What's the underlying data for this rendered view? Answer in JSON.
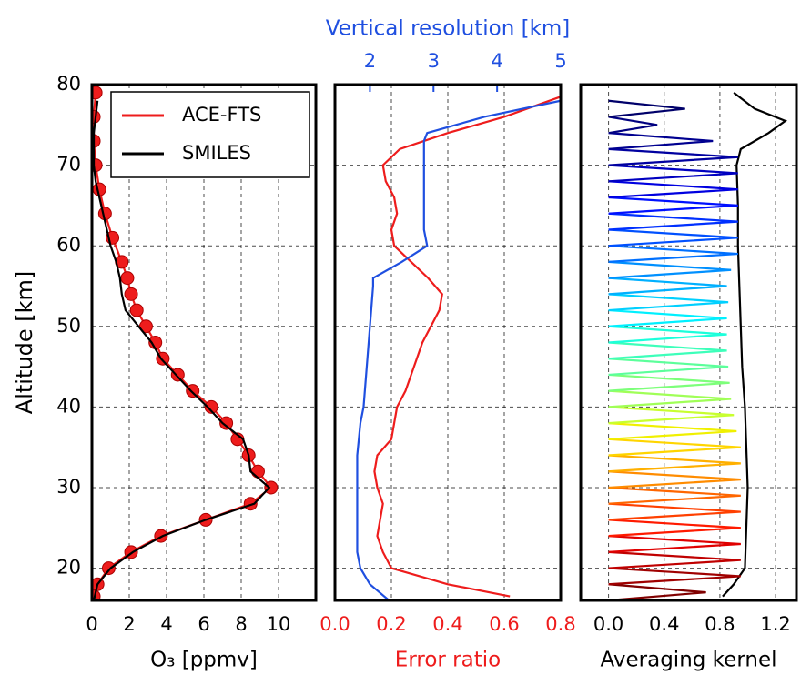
{
  "chart_data": [
    {
      "type": "line",
      "ylabel": "Altitude [km]",
      "xlabel": "O₃ [ppmv]",
      "xlim": [
        0,
        12
      ],
      "xticks": [
        0,
        2,
        4,
        6,
        8,
        10
      ],
      "ylim": [
        16,
        80
      ],
      "yticks": [
        20,
        30,
        40,
        50,
        60,
        70,
        80
      ],
      "ytick_labels": true,
      "grid": true,
      "legend": "upper right",
      "series": [
        {
          "name": "ACE-FTS",
          "color": "#ee1c1c",
          "marker": "o",
          "altitudes": [
            79,
            76,
            73,
            70,
            67,
            64,
            61,
            58,
            56,
            54,
            52,
            50,
            48,
            46,
            44,
            42,
            40,
            38,
            36,
            34,
            32,
            30,
            28,
            26,
            24,
            22,
            20,
            18,
            16.5
          ],
          "values": [
            0.2,
            0.1,
            0.1,
            0.2,
            0.4,
            0.7,
            1.1,
            1.6,
            1.9,
            2.1,
            2.4,
            2.9,
            3.4,
            3.8,
            4.6,
            5.4,
            6.4,
            7.2,
            7.8,
            8.4,
            8.9,
            9.6,
            8.5,
            6.1,
            3.7,
            2.1,
            0.9,
            0.3,
            0.1
          ]
        },
        {
          "name": "SMILES",
          "color": "#000000",
          "altitudes": [
            16,
            18,
            20,
            22,
            24,
            26,
            28,
            30,
            32,
            34,
            36,
            38,
            40,
            42,
            44,
            46,
            48,
            50,
            52,
            54,
            56,
            58,
            60,
            62,
            64,
            66,
            68,
            70,
            72,
            74,
            76,
            78
          ],
          "values": [
            0.1,
            0.3,
            1.0,
            2.2,
            3.8,
            6.1,
            8.7,
            9.5,
            8.5,
            8.4,
            8.1,
            7.0,
            6.2,
            5.3,
            4.5,
            3.7,
            3.2,
            2.5,
            1.8,
            1.6,
            1.5,
            1.3,
            1.0,
            0.8,
            0.6,
            0.4,
            0.2,
            0.1,
            0.1,
            0.1,
            0.2,
            0.3
          ]
        }
      ]
    },
    {
      "type": "line",
      "xlabel": "Error ratio",
      "xlabel_color": "#ee1c1c",
      "x2label": "Vertical resolution [km]",
      "x2label_color": "#1f4fe0",
      "xlim": [
        0,
        0.8
      ],
      "xticks": [
        {
          "value": 0,
          "label": "0.0"
        },
        0.2,
        0.4,
        0.6,
        0.8
      ],
      "xtick_color": "#ee1c1c",
      "x2lim": [
        1.45,
        5
      ],
      "x2ticks": [
        2,
        3,
        4,
        5
      ],
      "x2tick_color": "#1f4fe0",
      "ylim": [
        16,
        80
      ],
      "yticks": [
        20,
        30,
        40,
        50,
        60,
        70,
        80
      ],
      "ytick_labels": false,
      "grid": true,
      "series": [
        {
          "color": "#ee1c1c",
          "altitudes": [
            16.5,
            18,
            20,
            22,
            24,
            26,
            28,
            30,
            32,
            34,
            36,
            38,
            40,
            42,
            44,
            46,
            48,
            50,
            52,
            54,
            56,
            58,
            60,
            62,
            64,
            66,
            68,
            70,
            72,
            74,
            76,
            78.5
          ],
          "values": [
            0.62,
            0.4,
            0.2,
            0.17,
            0.15,
            0.16,
            0.17,
            0.15,
            0.14,
            0.15,
            0.2,
            0.21,
            0.22,
            0.25,
            0.27,
            0.29,
            0.31,
            0.34,
            0.37,
            0.38,
            0.33,
            0.27,
            0.21,
            0.2,
            0.22,
            0.21,
            0.18,
            0.17,
            0.23,
            0.4,
            0.6,
            0.8
          ]
        },
        {
          "color": "#1f4fe0",
          "axis": "x2",
          "altitudes": [
            16,
            18,
            20,
            22,
            26,
            30,
            34,
            38,
            40,
            45,
            50,
            55,
            56,
            58,
            60,
            62,
            66,
            70,
            73,
            74,
            76,
            78
          ],
          "values": [
            2.3,
            2.0,
            1.85,
            1.8,
            1.8,
            1.8,
            1.8,
            1.85,
            1.9,
            1.95,
            2.0,
            2.05,
            2.05,
            2.5,
            2.9,
            2.85,
            2.85,
            2.85,
            2.85,
            2.9,
            3.8,
            5.0
          ]
        }
      ]
    },
    {
      "type": "line",
      "xlabel": "Averaging kernel",
      "xlim": [
        -0.2,
        1.35
      ],
      "xticks": [
        {
          "value": 0,
          "label": "0.0"
        },
        0.4,
        0.8,
        1.2
      ],
      "ylim": [
        16,
        80
      ],
      "yticks": [
        20,
        30,
        40,
        50,
        60,
        70,
        80
      ],
      "ytick_labels": false,
      "grid": true,
      "series": [
        {
          "color": "#000000",
          "altitudes": [
            16.5,
            18,
            20,
            25,
            30,
            35,
            40,
            45,
            50,
            55,
            60,
            65,
            70,
            72,
            74,
            75.5,
            77,
            79
          ],
          "values": [
            0.82,
            0.9,
            0.98,
            0.99,
            1.0,
            0.99,
            0.98,
            0.96,
            0.95,
            0.94,
            0.93,
            0.93,
            0.92,
            0.95,
            1.15,
            1.27,
            1.05,
            0.9
          ]
        },
        {
          "color": "#800000",
          "altitudes": [
            16,
            17,
            18
          ],
          "values": [
            0,
            0.7,
            0
          ]
        },
        {
          "color": "#a00000",
          "altitudes": [
            18,
            19,
            20
          ],
          "values": [
            0,
            0.95,
            0
          ]
        },
        {
          "color": "#c00000",
          "altitudes": [
            20,
            21,
            22
          ],
          "values": [
            0,
            0.95,
            0
          ]
        },
        {
          "color": "#e00000",
          "altitudes": [
            22,
            23,
            24
          ],
          "values": [
            0,
            0.95,
            0
          ]
        },
        {
          "color": "#ff1a00",
          "altitudes": [
            24,
            25,
            26
          ],
          "values": [
            0,
            0.95,
            0
          ]
        },
        {
          "color": "#ff4000",
          "altitudes": [
            26,
            27,
            28
          ],
          "values": [
            0,
            0.95,
            0
          ]
        },
        {
          "color": "#ff6600",
          "altitudes": [
            28,
            29,
            30
          ],
          "values": [
            0,
            0.95,
            0
          ]
        },
        {
          "color": "#ff8c00",
          "altitudes": [
            30,
            31,
            32
          ],
          "values": [
            0,
            0.95,
            0
          ]
        },
        {
          "color": "#ffb000",
          "altitudes": [
            32,
            33,
            34
          ],
          "values": [
            0,
            0.95,
            0
          ]
        },
        {
          "color": "#ffd500",
          "altitudes": [
            34,
            35,
            36
          ],
          "values": [
            0,
            0.95,
            0
          ]
        },
        {
          "color": "#f0f000",
          "altitudes": [
            36,
            37,
            38
          ],
          "values": [
            0,
            0.92,
            0
          ]
        },
        {
          "color": "#c8ff2f",
          "altitudes": [
            38,
            39,
            40
          ],
          "values": [
            0,
            0.9,
            0
          ]
        },
        {
          "color": "#a0ff57",
          "altitudes": [
            40,
            41,
            42
          ],
          "values": [
            0,
            0.88,
            0
          ]
        },
        {
          "color": "#7dff7a",
          "altitudes": [
            42,
            43,
            44
          ],
          "values": [
            0,
            0.87,
            0
          ]
        },
        {
          "color": "#5cff9b",
          "altitudes": [
            44,
            45,
            46
          ],
          "values": [
            0,
            0.86,
            0
          ]
        },
        {
          "color": "#3dffba",
          "altitudes": [
            46,
            47,
            48
          ],
          "values": [
            0,
            0.85,
            0
          ]
        },
        {
          "color": "#1cffdb",
          "altitudes": [
            48,
            49,
            50
          ],
          "values": [
            0,
            0.85,
            0
          ]
        },
        {
          "color": "#00f0ff",
          "altitudes": [
            50,
            51,
            52
          ],
          "values": [
            0,
            0.85,
            0
          ]
        },
        {
          "color": "#00d0ff",
          "altitudes": [
            52,
            53,
            54
          ],
          "values": [
            0,
            0.86,
            0
          ]
        },
        {
          "color": "#00b0ff",
          "altitudes": [
            54,
            55,
            56
          ],
          "values": [
            0,
            0.85,
            0
          ]
        },
        {
          "color": "#0090ff",
          "altitudes": [
            56,
            57,
            58
          ],
          "values": [
            0,
            0.88,
            0
          ]
        },
        {
          "color": "#0070ff",
          "altitudes": [
            58,
            59,
            60
          ],
          "values": [
            0,
            0.93,
            0
          ]
        },
        {
          "color": "#0050ff",
          "altitudes": [
            60,
            61,
            62
          ],
          "values": [
            0,
            0.93,
            0
          ]
        },
        {
          "color": "#0030ff",
          "altitudes": [
            62,
            63,
            64
          ],
          "values": [
            0,
            0.93,
            0
          ]
        },
        {
          "color": "#0010ff",
          "altitudes": [
            64,
            65,
            66
          ],
          "values": [
            0,
            0.93,
            0
          ]
        },
        {
          "color": "#0000e0",
          "altitudes": [
            66,
            67,
            68
          ],
          "values": [
            0,
            0.93,
            0
          ]
        },
        {
          "color": "#0000c0",
          "altitudes": [
            68,
            69,
            70
          ],
          "values": [
            0,
            0.93,
            0
          ]
        },
        {
          "color": "#0000a0",
          "altitudes": [
            70,
            71,
            72
          ],
          "values": [
            0,
            0.93,
            0
          ]
        },
        {
          "color": "#000090",
          "altitudes": [
            72,
            73,
            74
          ],
          "values": [
            0,
            0.75,
            0
          ]
        },
        {
          "color": "#000080",
          "altitudes": [
            74,
            75,
            76
          ],
          "values": [
            0,
            0.35,
            0
          ]
        },
        {
          "color": "#00006a",
          "altitudes": [
            76,
            77,
            78
          ],
          "values": [
            0,
            0.55,
            0
          ]
        }
      ]
    }
  ]
}
